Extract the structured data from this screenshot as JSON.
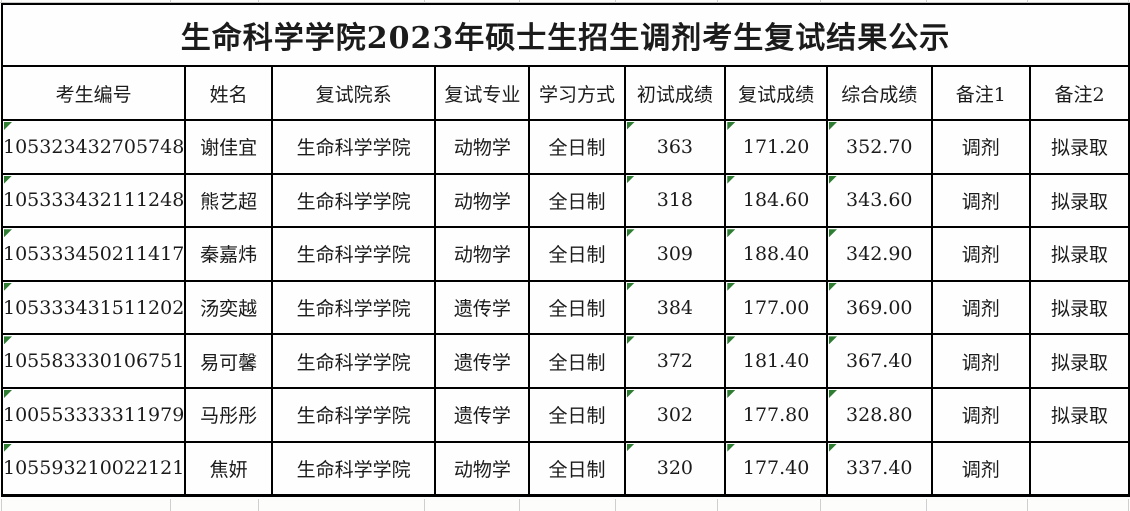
{
  "title": "生命科学学院2023年硕士生招生调剂考生复试结果公示",
  "table": {
    "headers": [
      "考生编号",
      "姓名",
      "复试院系",
      "复试专业",
      "学习方式",
      "初试成绩",
      "复试成绩",
      "综合成绩",
      "备注1",
      "备注2"
    ],
    "rows": [
      [
        "105323432705748",
        "谢佳宜",
        "生命科学学院",
        "动物学",
        "全日制",
        "363",
        "171.20",
        "352.70",
        "调剂",
        "拟录取"
      ],
      [
        "105333432111248",
        "熊艺超",
        "生命科学学院",
        "动物学",
        "全日制",
        "318",
        "184.60",
        "343.60",
        "调剂",
        "拟录取"
      ],
      [
        "105333450211417",
        "秦嘉炜",
        "生命科学学院",
        "动物学",
        "全日制",
        "309",
        "188.40",
        "342.90",
        "调剂",
        "拟录取"
      ],
      [
        "105333431511202",
        "汤奕越",
        "生命科学学院",
        "遗传学",
        "全日制",
        "384",
        "177.00",
        "369.00",
        "调剂",
        "拟录取"
      ],
      [
        "105583330106751",
        "易可馨",
        "生命科学学院",
        "遗传学",
        "全日制",
        "372",
        "181.40",
        "367.40",
        "调剂",
        "拟录取"
      ],
      [
        "100553333311979",
        "马彤彤",
        "生命科学学院",
        "遗传学",
        "全日制",
        "302",
        "177.80",
        "328.80",
        "调剂",
        "拟录取"
      ],
      [
        "105593210022121",
        "焦妍",
        "生命科学学院",
        "动物学",
        "全日制",
        "320",
        "177.40",
        "337.40",
        "调剂",
        ""
      ]
    ],
    "error_triangle_columns": [
      0,
      5,
      6,
      7
    ],
    "error_triangle_color": "#2e7d32",
    "border_color": "#000000"
  }
}
